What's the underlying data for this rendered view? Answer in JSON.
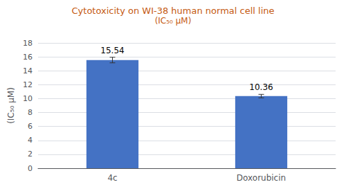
{
  "chart_data": {
    "type": "bar",
    "title": "Cytotoxicity on WI-38 human normal cell line",
    "subtitle": "(IC₅₀ μM)",
    "ylabel": "(IC₅₀ μM)",
    "categories": [
      "4c",
      "Doxorubicin"
    ],
    "values": [
      15.54,
      10.36
    ],
    "errors": [
      0.4,
      0.25
    ],
    "color": "#4472C4",
    "ylim": [
      0,
      18
    ],
    "yticks": [
      0,
      2,
      4,
      6,
      8,
      10,
      12,
      14,
      16,
      18
    ],
    "grid": true,
    "data_labels": true
  }
}
